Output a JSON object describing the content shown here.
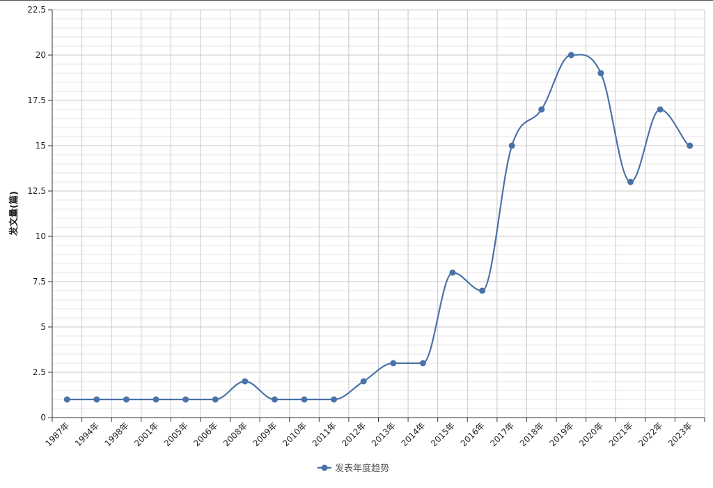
{
  "chart_data": {
    "type": "line",
    "ylabel": "发文量(篇)",
    "xlabel": "",
    "ylim": [
      0,
      22.5
    ],
    "y_ticks": [
      "0",
      "2.5",
      "5",
      "7.5",
      "10",
      "12.5",
      "15",
      "17.5",
      "20",
      "22.5"
    ],
    "categories": [
      "1987年",
      "1994年",
      "1998年",
      "2001年",
      "2005年",
      "2006年",
      "2008年",
      "2009年",
      "2010年",
      "2011年",
      "2012年",
      "2013年",
      "2014年",
      "2015年",
      "2016年",
      "2017年",
      "2018年",
      "2019年",
      "2020年",
      "2021年",
      "2022年",
      "2023年"
    ],
    "series": [
      {
        "name": "发表年度趋势",
        "values": [
          1,
          1,
          1,
          1,
          1,
          1,
          2,
          1,
          1,
          1,
          2,
          3,
          3,
          8,
          7,
          15,
          17,
          20,
          19,
          13,
          17,
          15
        ]
      }
    ],
    "grid": true,
    "smooth": true,
    "legend_position": "bottom-center",
    "colors": {
      "line": "#4a72a8",
      "grid_major": "#c8c8c8",
      "grid_minor": "#e6e6e6",
      "axis": "#333333"
    }
  }
}
